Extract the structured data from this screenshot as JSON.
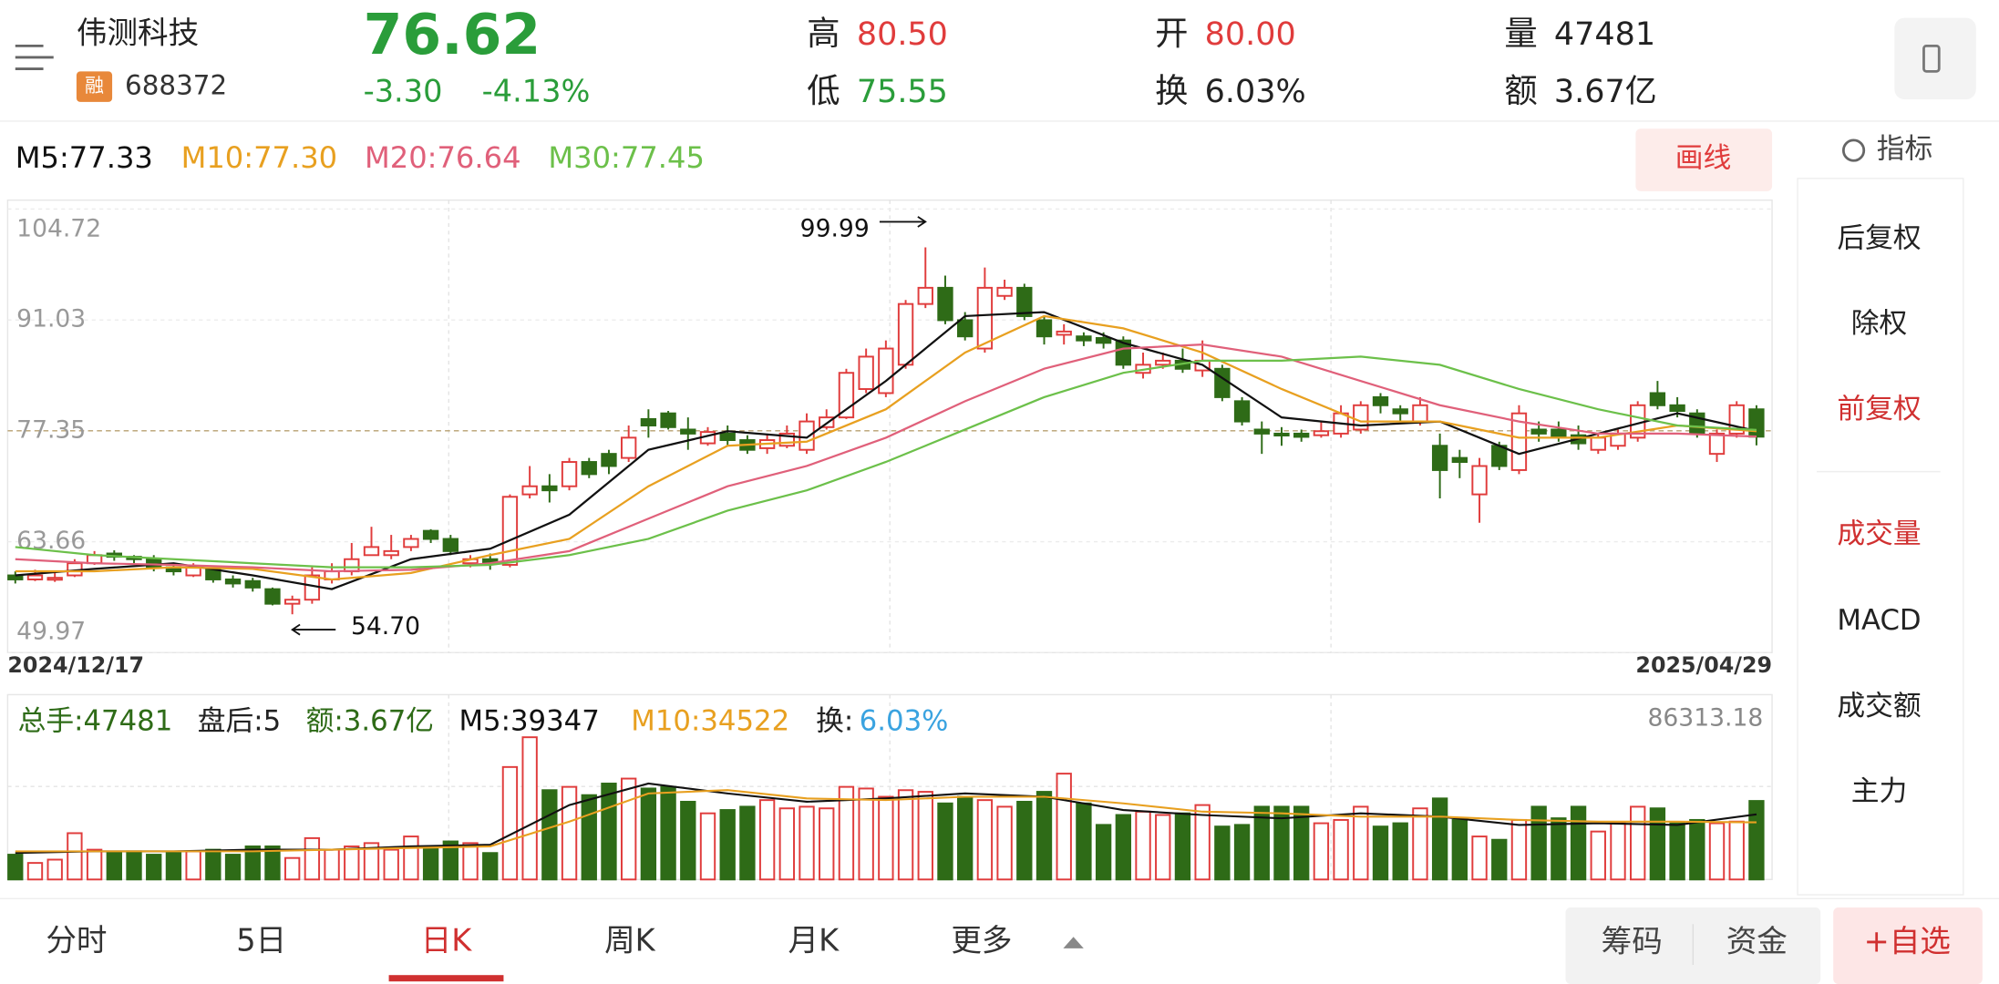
{
  "header": {
    "name": "伟测科技",
    "badge": "融",
    "code": "688372",
    "price": "76.62",
    "change": "-3.30",
    "change_pct": "-4.13%",
    "high_label": "高",
    "high": "80.50",
    "low_label": "低",
    "low": "75.55",
    "open_label": "开",
    "open": "80.00",
    "turnover_label": "换",
    "turnover": "6.03%",
    "volume_label": "量",
    "volume": "47481",
    "amount_label": "额",
    "amount": "3.67亿"
  },
  "draw_button": "画线",
  "sidebar": {
    "title": "指标",
    "items": [
      "后复权",
      "除权",
      "前复权",
      "成交量",
      "MACD",
      "成交额",
      "主力"
    ]
  },
  "tabs": [
    "分时",
    "5日",
    "日K",
    "周K",
    "月K",
    "更多"
  ],
  "buttons": [
    "筹码",
    "资金",
    "+自选"
  ],
  "chart_data": [
    {
      "type": "candlestick",
      "categories": [
        "2024/12/17",
        null,
        null,
        null,
        null,
        null,
        null,
        null,
        null,
        null,
        null,
        null,
        null,
        null,
        null,
        null,
        null,
        null,
        null,
        null,
        null,
        null,
        null,
        null,
        null,
        null,
        null,
        null,
        null,
        null,
        null,
        null,
        null,
        null,
        null,
        null,
        null,
        null,
        null,
        null,
        null,
        null,
        null,
        null,
        null,
        null,
        null,
        null,
        null,
        null,
        null,
        null,
        null,
        null,
        null,
        null,
        null,
        null,
        null,
        null,
        null,
        null,
        null,
        null,
        null,
        null,
        null,
        null,
        null,
        null,
        null,
        null,
        null,
        null,
        null,
        null,
        null,
        null,
        null,
        null,
        null,
        null,
        null,
        null,
        null,
        null,
        null,
        null,
        "2025/04/29"
      ],
      "open": [
        59.5,
        59.0,
        59.0,
        59.5,
        61.0,
        62.2,
        61.8,
        61.5,
        60.5,
        59.5,
        60.2,
        59.0,
        58.8,
        57.8,
        56.0,
        56.5,
        59.0,
        60.0,
        62.0,
        62.0,
        63.0,
        65.0,
        64.0,
        61.0,
        61.5,
        60.8,
        69.5,
        70.5,
        70.5,
        73.5,
        74.5,
        74.0,
        78.8,
        79.5,
        77.5,
        75.8,
        77.0,
        76.2,
        75.2,
        75.5,
        75.0,
        77.8,
        79.0,
        82.5,
        82.0,
        85.5,
        93.0,
        95.0,
        91.0,
        87.5,
        94.0,
        95.0,
        91.0,
        89.2,
        89.0,
        88.8,
        88.5,
        84.5,
        85.5,
        86.0,
        84.8,
        85.0,
        81.0,
        77.5,
        77.0,
        77.0,
        76.8,
        77.0,
        77.5,
        81.5,
        80.0,
        78.5,
        75.5,
        74.0,
        69.5,
        75.5,
        72.5,
        77.5,
        77.5,
        76.8,
        75.0,
        75.5,
        76.5,
        82.0,
        80.5,
        79.5,
        74.5,
        77.0,
        80.0
      ],
      "high": [
        60.0,
        60.2,
        59.8,
        61.5,
        62.5,
        62.6,
        62.0,
        62.0,
        61.0,
        61.0,
        60.5,
        59.5,
        59.2,
        58.0,
        57.0,
        60.5,
        61.0,
        63.5,
        65.5,
        64.5,
        64.5,
        65.2,
        64.5,
        62.0,
        62.2,
        69.5,
        73.0,
        72.0,
        74.0,
        74.0,
        75.0,
        78.0,
        80.0,
        79.8,
        79.0,
        77.8,
        78.0,
        76.8,
        77.0,
        78.0,
        79.5,
        80.0,
        85.0,
        87.5,
        88.5,
        93.5,
        99.99,
        96.5,
        92.0,
        97.5,
        96.0,
        95.5,
        91.5,
        90.5,
        89.5,
        89.5,
        89.0,
        87.0,
        87.0,
        87.5,
        88.5,
        85.5,
        81.5,
        78.5,
        77.8,
        77.5,
        78.5,
        80.5,
        81.0,
        82.0,
        80.5,
        81.5,
        77.0,
        75.0,
        74.0,
        76.0,
        80.5,
        78.5,
        78.5,
        78.0,
        77.0,
        77.5,
        81.0,
        83.5,
        81.5,
        80.0,
        77.5,
        81.0,
        80.5
      ],
      "low": [
        58.5,
        58.8,
        58.7,
        59.3,
        60.8,
        61.3,
        61.0,
        60.0,
        59.5,
        59.3,
        58.6,
        58.0,
        57.5,
        55.8,
        54.7,
        56.0,
        58.5,
        59.5,
        62.0,
        61.5,
        62.5,
        63.5,
        62.0,
        60.5,
        60.2,
        60.5,
        69.0,
        68.5,
        70.0,
        71.5,
        72.0,
        73.5,
        76.5,
        77.5,
        75.0,
        75.5,
        75.5,
        74.5,
        74.5,
        75.2,
        74.5,
        77.5,
        78.8,
        82.0,
        81.5,
        85.0,
        92.5,
        90.5,
        88.5,
        87.0,
        93.5,
        91.0,
        88.0,
        88.0,
        87.8,
        87.5,
        85.0,
        83.8,
        85.0,
        84.5,
        84.0,
        81.0,
        78.0,
        74.5,
        75.5,
        76.0,
        76.5,
        76.5,
        77.0,
        79.5,
        78.5,
        78.0,
        69.0,
        71.5,
        66.0,
        72.5,
        72.0,
        76.0,
        76.0,
        75.0,
        74.5,
        75.0,
        76.0,
        80.0,
        79.0,
        76.5,
        73.5,
        76.5,
        75.55
      ],
      "close": [
        59.0,
        59.5,
        59.2,
        61.0,
        62.0,
        61.8,
        61.5,
        60.5,
        60.0,
        60.5,
        59.0,
        58.5,
        58.0,
        56.0,
        56.5,
        59.5,
        60.0,
        61.5,
        63.0,
        62.5,
        64.0,
        64.0,
        62.5,
        61.5,
        61.0,
        69.2,
        70.5,
        70.0,
        73.5,
        72.0,
        73.0,
        76.5,
        78.0,
        77.8,
        77.0,
        77.2,
        76.2,
        75.0,
        76.2,
        77.0,
        78.5,
        79.0,
        84.5,
        86.5,
        87.5,
        93.0,
        95.0,
        91.0,
        89.0,
        95.0,
        95.0,
        91.5,
        89.0,
        89.6,
        88.5,
        88.2,
        85.5,
        85.5,
        86.0,
        85.0,
        86.0,
        81.5,
        78.5,
        77.0,
        76.8,
        76.6,
        77.3,
        79.5,
        80.5,
        80.5,
        79.5,
        80.5,
        72.5,
        73.5,
        73.0,
        73.0,
        79.5,
        77.0,
        76.5,
        75.8,
        76.5,
        77.0,
        80.5,
        80.5,
        79.8,
        77.0,
        77.0,
        80.5,
        76.62
      ],
      "up_color": "#e03c3c",
      "down_color": "#2e6b17",
      "ylim": [
        49.97,
        104.72
      ],
      "yticks": [
        104.72,
        91.03,
        77.35,
        63.66,
        49.97
      ],
      "grid": true,
      "annotations": [
        "99.99",
        "54.70"
      ],
      "series": [
        {
          "name": "M5:77.33",
          "color": "#111111",
          "x": [
            0,
            4,
            8,
            12,
            16,
            20,
            24,
            28,
            32,
            36,
            40,
            44,
            48,
            52,
            56,
            60,
            64,
            68,
            72,
            76,
            80,
            84,
            88
          ],
          "values": [
            59.5,
            60.3,
            61.0,
            59.5,
            57.8,
            61.5,
            62.8,
            67.0,
            75.0,
            77.3,
            76.5,
            83.5,
            91.5,
            92.0,
            88.2,
            85.5,
            79.0,
            78.0,
            78.5,
            74.5,
            77.0,
            79.5,
            77.33
          ]
        },
        {
          "name": "M10:77.30",
          "color": "#e8a020",
          "x": [
            0,
            4,
            8,
            12,
            16,
            20,
            24,
            28,
            32,
            36,
            40,
            44,
            48,
            52,
            56,
            60,
            64,
            68,
            72,
            76,
            80,
            84,
            88
          ],
          "values": [
            60.0,
            60.0,
            60.5,
            60.3,
            59.0,
            59.8,
            62.0,
            64.0,
            70.5,
            75.5,
            76.0,
            80.0,
            87.0,
            91.5,
            90.0,
            87.0,
            82.5,
            78.5,
            78.5,
            76.5,
            76.5,
            78.0,
            77.3
          ]
        },
        {
          "name": "M20:76.64",
          "color": "#e0607a",
          "x": [
            0,
            4,
            8,
            12,
            16,
            20,
            24,
            28,
            32,
            36,
            40,
            44,
            48,
            52,
            56,
            60,
            64,
            68,
            72,
            76,
            80,
            84,
            88
          ],
          "values": [
            61.5,
            61.0,
            60.8,
            60.5,
            60.0,
            60.2,
            61.0,
            62.5,
            66.5,
            70.5,
            73.0,
            76.5,
            81.0,
            85.0,
            87.5,
            88.0,
            86.5,
            83.5,
            80.5,
            78.5,
            77.0,
            77.0,
            76.64
          ]
        },
        {
          "name": "M30:77.45",
          "color": "#6cc04a",
          "x": [
            0,
            4,
            8,
            12,
            16,
            20,
            24,
            28,
            32,
            36,
            40,
            44,
            48,
            52,
            56,
            60,
            64,
            68,
            72,
            76,
            80,
            84,
            88
          ],
          "values": [
            63.0,
            62.0,
            61.5,
            61.0,
            60.5,
            60.5,
            60.8,
            62.0,
            64.0,
            67.5,
            70.0,
            73.5,
            77.5,
            81.5,
            84.5,
            86.0,
            86.0,
            86.5,
            85.5,
            82.5,
            80.0,
            78.0,
            77.45
          ]
        }
      ]
    },
    {
      "type": "bar",
      "values": [
        15000,
        10000,
        12000,
        28000,
        18000,
        16000,
        17000,
        15000,
        16000,
        17000,
        18000,
        15000,
        20000,
        20000,
        13000,
        25000,
        18000,
        20000,
        22000,
        18000,
        26000,
        20000,
        23000,
        22000,
        16000,
        68000,
        86000,
        54000,
        56000,
        51000,
        58000,
        61000,
        55000,
        56000,
        47000,
        40000,
        42000,
        44000,
        48000,
        43000,
        44000,
        43000,
        56000,
        55000,
        50000,
        54000,
        53000,
        46000,
        50000,
        48000,
        44000,
        47000,
        53000,
        64000,
        46000,
        33000,
        39000,
        41000,
        39000,
        40000,
        45000,
        32000,
        33000,
        44000,
        44000,
        44000,
        34000,
        36000,
        44000,
        32000,
        34000,
        43000,
        49000,
        36000,
        26000,
        24000,
        36000,
        44000,
        37000,
        44000,
        29000,
        34000,
        44000,
        43000,
        34000,
        36000,
        34000,
        35000,
        47481
      ],
      "ylim": [
        0,
        86313.18
      ],
      "yticks": [
        86313.18
      ],
      "info": [
        "总手:47481",
        "盘后:5",
        "额:3.67亿"
      ],
      "turnover_label": "换:",
      "turnover": "6.03%",
      "series": [
        {
          "name": "M5:39347",
          "color": "#111111",
          "x": [
            0,
            4,
            8,
            12,
            16,
            20,
            24,
            28,
            32,
            36,
            40,
            44,
            48,
            52,
            56,
            60,
            64,
            68,
            72,
            76,
            80,
            84,
            88
          ],
          "values": [
            16000,
            17000,
            17000,
            18000,
            18000,
            20000,
            21000,
            45000,
            58000,
            52000,
            47000,
            49000,
            52000,
            50000,
            42000,
            39000,
            37000,
            40000,
            38000,
            33000,
            34000,
            33000,
            39347
          ]
        },
        {
          "name": "M10:34522",
          "color": "#e8a020",
          "x": [
            0,
            4,
            8,
            12,
            16,
            20,
            24,
            28,
            32,
            36,
            40,
            44,
            48,
            52,
            56,
            60,
            64,
            68,
            72,
            76,
            80,
            84,
            88
          ],
          "values": [
            17000,
            17000,
            17000,
            17000,
            18000,
            19000,
            20000,
            35000,
            52000,
            54000,
            49000,
            48000,
            50000,
            50000,
            46000,
            41000,
            40000,
            38000,
            38000,
            36000,
            35000,
            35000,
            34522
          ]
        }
      ]
    }
  ]
}
